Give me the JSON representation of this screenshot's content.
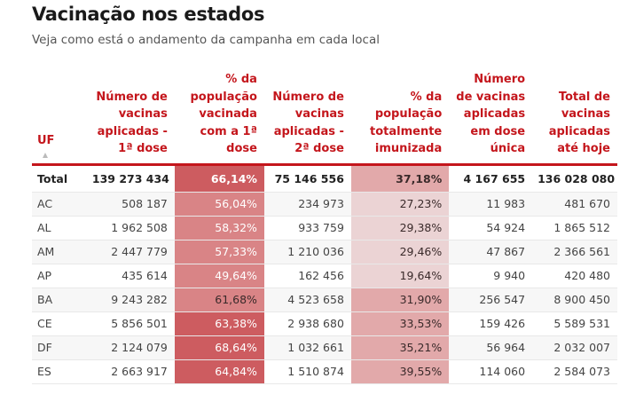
{
  "header": {
    "title": "Vacinação nos estados",
    "subtitle": "Veja como está o andamento da campanha em cada local"
  },
  "table": {
    "columns": [
      {
        "key": "uf",
        "label": "UF",
        "sortable": true,
        "sort_icon": "sort-ascending-icon"
      },
      {
        "key": "dose1",
        "label": "Número de vacinas aplicadas - 1ª dose"
      },
      {
        "key": "pct_dose1",
        "label": "% da população vacinada com a 1ª dose"
      },
      {
        "key": "dose2",
        "label": "Número de vacinas aplicadas - 2ª dose"
      },
      {
        "key": "pct_full",
        "label": "% da população totalmente imunizada"
      },
      {
        "key": "single",
        "label": "Número de vacinas aplicadas em dose única"
      },
      {
        "key": "total",
        "label": "Total de vacinas aplicadas até hoje"
      }
    ],
    "rows": [
      {
        "uf": "Total",
        "dose1": "139 273 434",
        "pct_dose1": "66,14%",
        "dose2": "75 146 556",
        "pct_full": "37,18%",
        "single": "4 167 655",
        "total": "136 028 080"
      },
      {
        "uf": "AC",
        "dose1": "508 187",
        "pct_dose1": "56,04%",
        "dose2": "234 973",
        "pct_full": "27,23%",
        "single": "11 983",
        "total": "481 670"
      },
      {
        "uf": "AL",
        "dose1": "1 962 508",
        "pct_dose1": "58,32%",
        "dose2": "933 759",
        "pct_full": "29,38%",
        "single": "54 924",
        "total": "1 865 512"
      },
      {
        "uf": "AM",
        "dose1": "2 447 779",
        "pct_dose1": "57,33%",
        "dose2": "1 210 036",
        "pct_full": "29,46%",
        "single": "47 867",
        "total": "2 366 561"
      },
      {
        "uf": "AP",
        "dose1": "435 614",
        "pct_dose1": "49,64%",
        "dose2": "162 456",
        "pct_full": "19,64%",
        "single": "9 940",
        "total": "420 480"
      },
      {
        "uf": "BA",
        "dose1": "9 243 282",
        "pct_dose1": "61,68%",
        "dose2": "4 523 658",
        "pct_full": "31,90%",
        "single": "256 547",
        "total": "8 900 450"
      },
      {
        "uf": "CE",
        "dose1": "5 856 501",
        "pct_dose1": "63,38%",
        "dose2": "2 938 680",
        "pct_full": "33,53%",
        "single": "159 426",
        "total": "5 589 531"
      },
      {
        "uf": "DF",
        "dose1": "2 124 079",
        "pct_dose1": "68,64%",
        "dose2": "1 032 661",
        "pct_full": "35,21%",
        "single": "56 964",
        "total": "2 032 007"
      },
      {
        "uf": "ES",
        "dose1": "2 663 917",
        "pct_dose1": "64,84%",
        "dose2": "1 510 874",
        "pct_full": "39,55%",
        "single": "114 060",
        "total": "2 584 073"
      }
    ],
    "heat_colors": {
      "pct_dose1": {
        "Total": "#cd5c60",
        "AC": "#d98486",
        "AL": "#d98486",
        "AM": "#d98486",
        "AP": "#d98486",
        "BA": "#d98486",
        "CE": "#cd5c60",
        "DF": "#cd5c60",
        "ES": "#cd5c60"
      },
      "pct_full": {
        "Total": "#e2a9aa",
        "AC": "#ebd3d4",
        "AL": "#ebd3d4",
        "AM": "#ebd3d4",
        "AP": "#ebd3d4",
        "BA": "#e2a9aa",
        "CE": "#e2a9aa",
        "DF": "#e2a9aa",
        "ES": "#e2a9aa"
      }
    },
    "accent_color": "#c4161c"
  }
}
